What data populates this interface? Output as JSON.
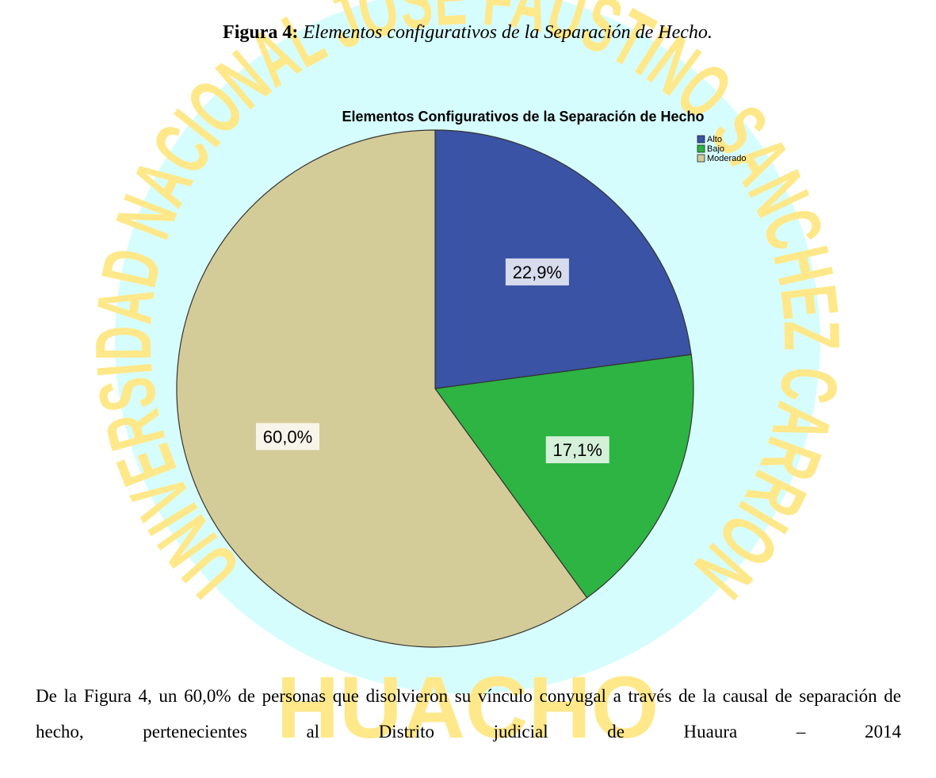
{
  "caption": {
    "label": "Figura 4:",
    "text": "Elementos configurativos de la Separación de Hecho."
  },
  "chart_data": {
    "type": "pie",
    "title": "Elementos Configurativos de la Separación de Hecho",
    "categories": [
      "Alto",
      "Bajo",
      "Moderado"
    ],
    "values": [
      22.9,
      17.1,
      60.0
    ],
    "value_labels": [
      "22,9%",
      "17,1%",
      "60,0%"
    ],
    "colors": [
      "#3a53a4",
      "#2db443",
      "#d4cc98"
    ],
    "legend": "top-right"
  },
  "paragraph": "De la Figura 4, un 60,0% de personas que disolvieron su vínculo conyugal a través de la causal de separación de hecho, pertenecientes al Distrito judicial de Huaura – 2014",
  "watermark": {
    "ring": "UNIVERSIDAD NACIONAL JOSE FAUSTINO SANCHEZ CARRION",
    "bottom": "HUACHO"
  }
}
